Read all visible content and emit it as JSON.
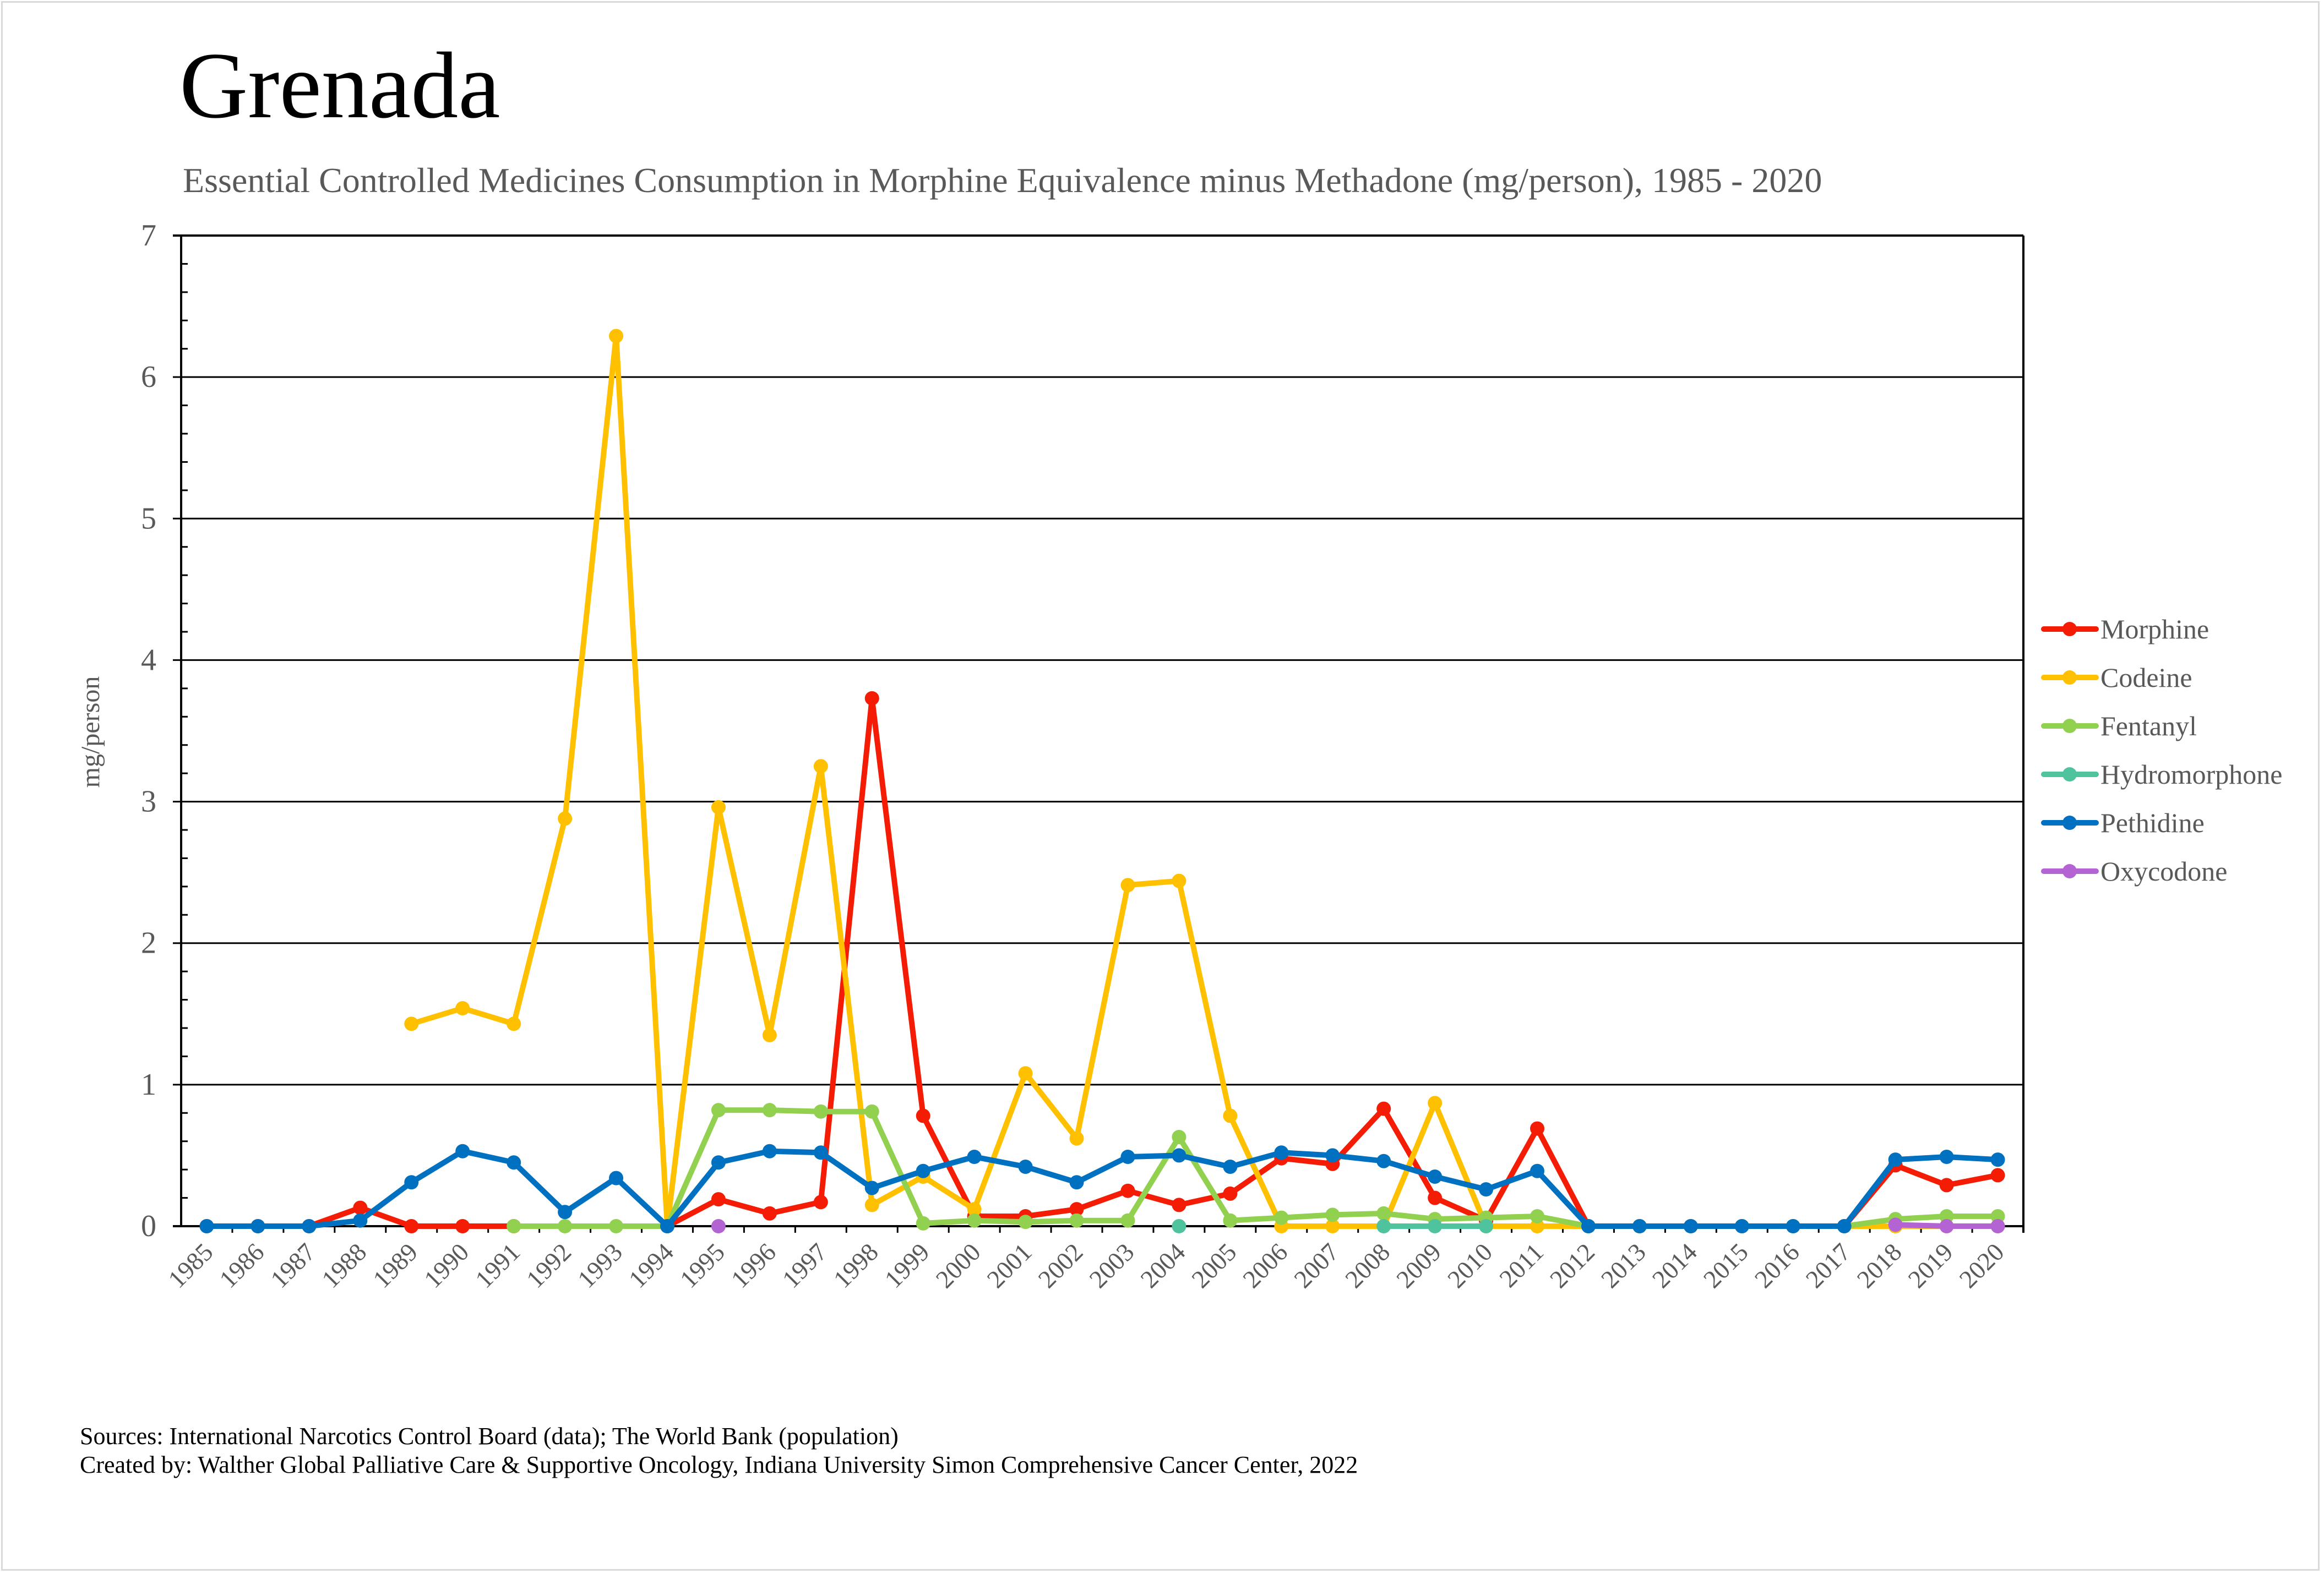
{
  "header": {
    "title": "Grenada",
    "subtitle": "Essential Controlled Medicines Consumption in Morphine Equivalence minus Methadone (mg/person), 1985 - 2020"
  },
  "footer": {
    "sources": "Sources: International Narcotics Control Board (data); The World Bank (population)",
    "created_by": "Created by: Walther Global Palliative Care & Supportive Oncology, Indiana University Simon Comprehensive Cancer Center, 2022"
  },
  "chart_data": {
    "type": "line",
    "title": "Grenada",
    "subtitle": "Essential Controlled Medicines Consumption in Morphine Equivalence minus Methadone (mg/person), 1985 - 2020",
    "xlabel": "",
    "ylabel": "mg/person",
    "ylim": [
      0,
      7
    ],
    "yticks": [
      "0",
      "1",
      "2",
      "3",
      "4",
      "5",
      "6",
      "7"
    ],
    "y_minor_step": 0.2,
    "grid": true,
    "legend_position": "right",
    "categories": [
      "1985",
      "1986",
      "1987",
      "1988",
      "1989",
      "1990",
      "1991",
      "1992",
      "1993",
      "1994",
      "1995",
      "1996",
      "1997",
      "1998",
      "1999",
      "2000",
      "2001",
      "2002",
      "2003",
      "2004",
      "2005",
      "2006",
      "2007",
      "2008",
      "2009",
      "2010",
      "2011",
      "2012",
      "2013",
      "2014",
      "2015",
      "2016",
      "2017",
      "2018",
      "2019",
      "2020"
    ],
    "series": [
      {
        "name": "Morphine",
        "color": "#f41c04",
        "values": [
          0,
          0,
          0,
          0.13,
          0,
          0,
          0,
          null,
          null,
          0,
          0.19,
          0.09,
          0.17,
          3.73,
          0.78,
          0.07,
          0.07,
          0.12,
          0.25,
          0.15,
          0.23,
          0.48,
          0.44,
          0.83,
          0.2,
          0.04,
          0.69,
          0,
          0,
          0,
          0,
          0,
          0,
          0.43,
          0.29,
          0.36
        ]
      },
      {
        "name": "Codeine",
        "color": "#ffc000",
        "values": [
          null,
          null,
          null,
          null,
          1.43,
          1.54,
          1.43,
          2.88,
          6.29,
          0,
          2.96,
          1.35,
          3.25,
          0.15,
          0.35,
          0.12,
          1.08,
          0.62,
          2.41,
          2.44,
          0.78,
          0,
          0,
          0,
          0.87,
          0,
          0,
          0,
          0,
          0,
          0,
          0,
          0,
          0,
          0,
          0
        ]
      },
      {
        "name": "Fentanyl",
        "color": "#92d050",
        "values": [
          null,
          null,
          null,
          null,
          null,
          null,
          0,
          0,
          0,
          0,
          0.82,
          0.82,
          0.81,
          0.81,
          0.02,
          0.04,
          0.03,
          0.04,
          0.04,
          0.63,
          0.04,
          0.06,
          0.08,
          0.09,
          0.05,
          0.06,
          0.07,
          0,
          0,
          0,
          0,
          0,
          0,
          0.05,
          0.07,
          0.07
        ]
      },
      {
        "name": "Hydromorphone",
        "color": "#4fc39e",
        "values": [
          null,
          null,
          null,
          null,
          null,
          null,
          null,
          null,
          null,
          null,
          null,
          null,
          null,
          null,
          null,
          null,
          null,
          null,
          null,
          0,
          null,
          null,
          null,
          0,
          0,
          0,
          null,
          null,
          null,
          null,
          null,
          null,
          null,
          null,
          null,
          null
        ]
      },
      {
        "name": "Pethidine",
        "color": "#0070c0",
        "values": [
          0,
          0,
          0,
          0.04,
          0.31,
          0.53,
          0.45,
          0.1,
          0.34,
          0,
          0.45,
          0.53,
          0.52,
          0.27,
          0.39,
          0.49,
          0.42,
          0.31,
          0.49,
          0.5,
          0.42,
          0.52,
          0.5,
          0.46,
          0.35,
          0.26,
          0.39,
          0,
          0,
          0,
          0,
          0,
          0,
          0.47,
          0.49,
          0.47
        ]
      },
      {
        "name": "Oxycodone",
        "color": "#b464d2",
        "values": [
          null,
          null,
          null,
          null,
          null,
          null,
          null,
          null,
          null,
          null,
          0,
          null,
          null,
          null,
          null,
          null,
          null,
          null,
          null,
          null,
          null,
          null,
          null,
          null,
          null,
          null,
          null,
          null,
          null,
          null,
          null,
          null,
          null,
          0.01,
          0,
          0
        ]
      }
    ]
  }
}
